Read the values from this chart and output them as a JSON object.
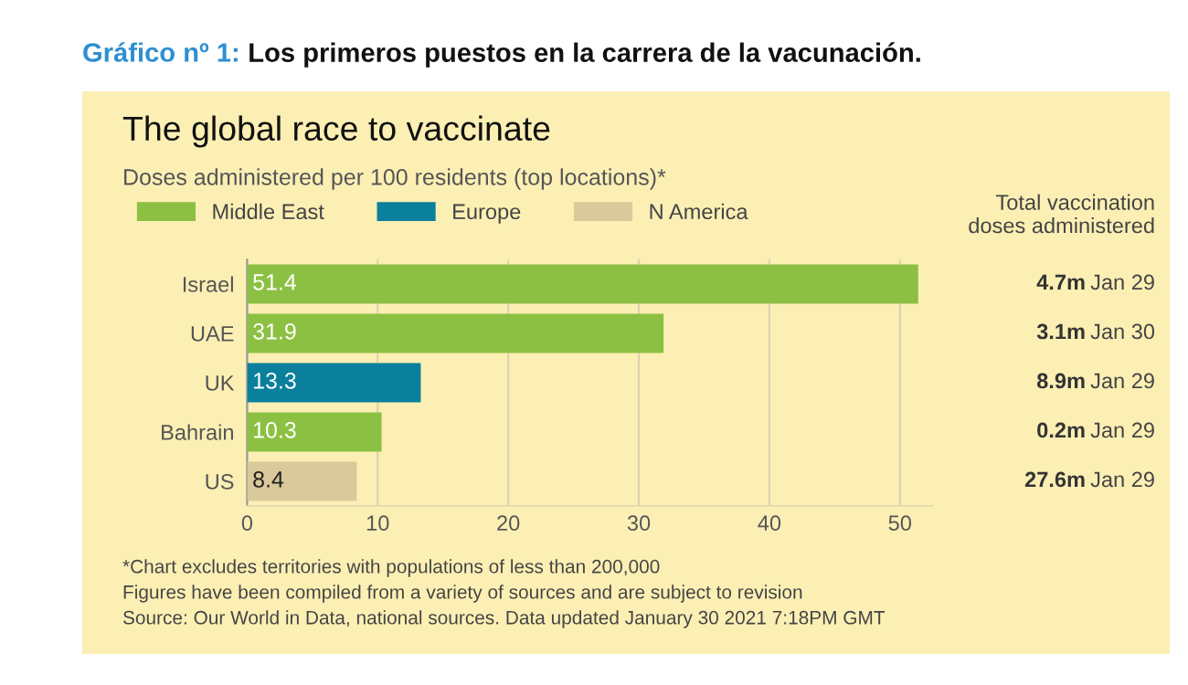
{
  "chart_data": {
    "type": "bar",
    "orientation": "horizontal",
    "title": "The global race to vaccinate",
    "subtitle": "Doses administered per 100 residents (top locations)*",
    "categories": [
      "Israel",
      "UAE",
      "UK",
      "Bahrain",
      "US"
    ],
    "series": [
      {
        "name": "Middle East",
        "color": "#8cc043",
        "values": [
          51.4,
          31.9,
          null,
          10.3,
          null
        ]
      },
      {
        "name": "Europe",
        "color": "#0a809c",
        "values": [
          null,
          null,
          13.3,
          null,
          null
        ]
      },
      {
        "name": "N America",
        "color": "#d9c99b",
        "values": [
          null,
          null,
          null,
          null,
          8.4
        ]
      }
    ],
    "data_labels": true,
    "xlim": [
      0,
      52.5
    ],
    "xticks": [
      0,
      10,
      20,
      30,
      40,
      50
    ],
    "grid": "x",
    "legend": "top left",
    "annotations": [
      "Gráfico nº 1: Los primeros puestos en la carrera de la vacunación.",
      "Total vaccination doses administered",
      "4.7m",
      "Jan 29",
      "3.1m",
      "Jan 30",
      "8.9m",
      "Jan 29",
      "0.2m",
      "Jan 29",
      "27.6m",
      "Jan 29",
      "*Chart excludes territories with populations of less than 200,000",
      "Figures have been compiled from a variety of sources and are subject to revision",
      "Source: Our World in Data, national sources. Data updated January 30 2021 7:18PM GMT"
    ]
  }
}
